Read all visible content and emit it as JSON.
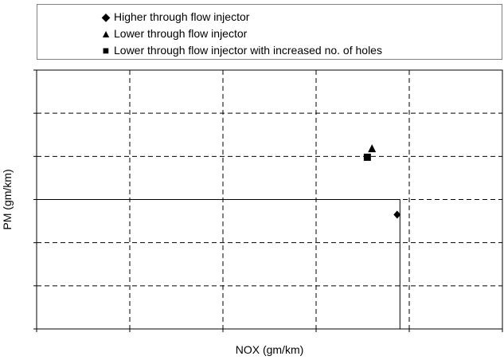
{
  "chart_data": {
    "type": "scatter",
    "xlabel": "NOX (gm/km)",
    "ylabel": "PM (gm/km)",
    "xlim": [
      0,
      5
    ],
    "ylim": [
      0,
      6
    ],
    "grid": true,
    "legend_position": "top",
    "series": [
      {
        "name": "Higher through flow injector",
        "marker": "diamond",
        "color": "#000000",
        "points": [
          {
            "x": 3.87,
            "y": 2.65
          }
        ]
      },
      {
        "name": "Lower through flow injector",
        "marker": "triangle",
        "color": "#000000",
        "points": [
          {
            "x": 3.6,
            "y": 4.18
          }
        ]
      },
      {
        "name": "Lower through flow injector with increased no. of holes",
        "marker": "square",
        "color": "#000000",
        "points": [
          {
            "x": 3.55,
            "y": 3.98
          }
        ]
      }
    ],
    "limit_box": {
      "x_max": 3.9,
      "y_max": 3.0
    }
  }
}
